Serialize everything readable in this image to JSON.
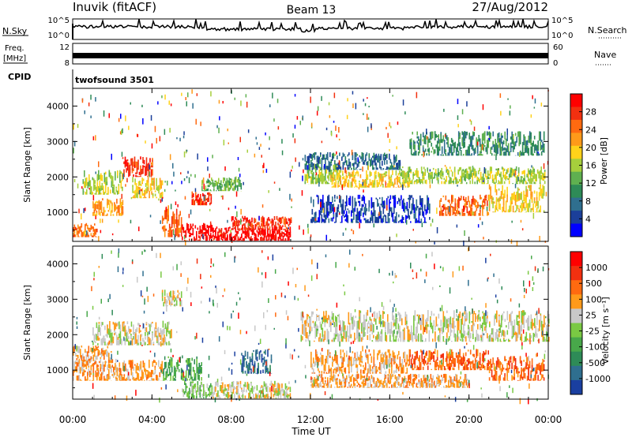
{
  "header": {
    "site": "Inuvik (fitACF)",
    "beam": "Beam 13",
    "date": "27/Aug/2012"
  },
  "summary_panels": {
    "nsky_label": "N.Sky",
    "nsky_ticks": [
      "10^5",
      "10^0"
    ],
    "nsearch_label": "N.Search",
    "freq_label_line1": "Freq.",
    "freq_label_line2": "[MHz]",
    "freq_ticks": [
      "12",
      "8"
    ],
    "nave_label": "Nave",
    "nave_ticks": [
      "60",
      "0"
    ],
    "cpid_label": "CPID",
    "cpid_value": "twofsound 3501"
  },
  "chart_data": [
    {
      "type": "heatmap",
      "panel": "power",
      "ylabel": "Slant Range [km]",
      "xlabel": "",
      "x_ticks": [
        "00:00",
        "04:00",
        "08:00",
        "12:00",
        "16:00",
        "20:00",
        "00:00"
      ],
      "xlim_hours": [
        0,
        24
      ],
      "y_ticks": [
        1000,
        2000,
        3000,
        4000
      ],
      "ylim": [
        180,
        4500
      ],
      "colorbar": {
        "label": "Power [dB]",
        "ticks": [
          "28",
          "24",
          "20",
          "16",
          "12",
          "8",
          "4"
        ],
        "colors": [
          "#0000ff",
          "#1b3f9a",
          "#2f6f8f",
          "#2e8b57",
          "#5fb050",
          "#a6cf3c",
          "#ffd21a",
          "#ff9a1a",
          "#ff6a10",
          "#f23010",
          "#ff0000"
        ]
      },
      "patches": [
        {
          "t": [
            0.0,
            1.2
          ],
          "r": [
            300,
            700
          ],
          "level": 8
        },
        {
          "t": [
            1.0,
            2.5
          ],
          "r": [
            900,
            1400
          ],
          "level": 7
        },
        {
          "t": [
            0.5,
            2.5
          ],
          "r": [
            1500,
            2200
          ],
          "level": 5
        },
        {
          "t": [
            2.5,
            4.0
          ],
          "r": [
            2000,
            2600
          ],
          "level": 9
        },
        {
          "t": [
            3.0,
            4.5
          ],
          "r": [
            1400,
            2000
          ],
          "level": 6
        },
        {
          "t": [
            4.5,
            5.5
          ],
          "r": [
            300,
            1200
          ],
          "level": 8
        },
        {
          "t": [
            5.5,
            7.0
          ],
          "r": [
            200,
            700
          ],
          "level": 10
        },
        {
          "t": [
            6.0,
            7.0
          ],
          "r": [
            1200,
            1600
          ],
          "level": 9
        },
        {
          "t": [
            7.0,
            11.0
          ],
          "r": [
            200,
            600
          ],
          "level": 10
        },
        {
          "t": [
            8.0,
            11.0
          ],
          "r": [
            500,
            900
          ],
          "level": 9
        },
        {
          "t": [
            6.5,
            8.5
          ],
          "r": [
            1600,
            2000
          ],
          "level": 4
        },
        {
          "t": [
            11.7,
            13.5
          ],
          "r": [
            1800,
            2400
          ],
          "level": 5
        },
        {
          "t": [
            11.7,
            16.5
          ],
          "r": [
            2200,
            2700
          ],
          "level": 2
        },
        {
          "t": [
            13.0,
            17.0
          ],
          "r": [
            1700,
            2200
          ],
          "level": 6
        },
        {
          "t": [
            12.0,
            18.0
          ],
          "r": [
            700,
            1500
          ],
          "level": 1
        },
        {
          "t": [
            16.5,
            23.8
          ],
          "r": [
            1800,
            2300
          ],
          "level": 5
        },
        {
          "t": [
            18.5,
            21.0
          ],
          "r": [
            900,
            1500
          ],
          "level": 8
        },
        {
          "t": [
            21.0,
            23.8
          ],
          "r": [
            1000,
            1800
          ],
          "level": 6
        },
        {
          "t": [
            17.0,
            23.8
          ],
          "r": [
            2600,
            3300
          ],
          "level": 3
        }
      ]
    },
    {
      "type": "heatmap",
      "panel": "velocity",
      "ylabel": "Slant Range [km]",
      "xlabel": "Time UT",
      "x_ticks": [
        "00:00",
        "04:00",
        "08:00",
        "12:00",
        "16:00",
        "20:00",
        "00:00"
      ],
      "xlim_hours": [
        0,
        24
      ],
      "y_ticks": [
        1000,
        2000,
        3000,
        4000
      ],
      "ylim": [
        180,
        4500
      ],
      "colorbar": {
        "label": "Velocity [m s⁻¹]",
        "ticks": [
          "1000",
          "500",
          "100",
          "25",
          "-25",
          "-100",
          "-500",
          "-1000"
        ],
        "colors": [
          "#1a3fa0",
          "#2f6f8f",
          "#2e8b57",
          "#48a84a",
          "#7ac943",
          "#c8c8c8",
          "#ff9a1a",
          "#ff6a10",
          "#f23010",
          "#ff0000"
        ]
      },
      "patches": [
        {
          "t": [
            0.0,
            2.0
          ],
          "r": [
            1200,
            1700
          ],
          "level": 6
        },
        {
          "t": [
            1.0,
            5.0
          ],
          "r": [
            1700,
            2400
          ],
          "level": 5
        },
        {
          "t": [
            0.0,
            4.5
          ],
          "r": [
            700,
            1300
          ],
          "level": 6
        },
        {
          "t": [
            4.5,
            6.5
          ],
          "r": [
            700,
            1400
          ],
          "level": 3
        },
        {
          "t": [
            5.5,
            7.0
          ],
          "r": [
            200,
            700
          ],
          "level": 4
        },
        {
          "t": [
            7.0,
            11.0
          ],
          "r": [
            200,
            700
          ],
          "level": 5
        },
        {
          "t": [
            8.5,
            10.0
          ],
          "r": [
            900,
            1600
          ],
          "level": 1
        },
        {
          "t": [
            4.5,
            5.5
          ],
          "r": [
            2800,
            3300
          ],
          "level": 5
        },
        {
          "t": [
            11.5,
            24.0
          ],
          "r": [
            1800,
            2700
          ],
          "level": 5
        },
        {
          "t": [
            12.0,
            17.0
          ],
          "r": [
            900,
            1600
          ],
          "level": 6
        },
        {
          "t": [
            17.0,
            21.0
          ],
          "r": [
            1000,
            1600
          ],
          "level": 7
        },
        {
          "t": [
            21.0,
            23.8
          ],
          "r": [
            700,
            1400
          ],
          "level": 7
        },
        {
          "t": [
            12.0,
            20.0
          ],
          "r": [
            500,
            900
          ],
          "level": 6
        }
      ]
    }
  ]
}
